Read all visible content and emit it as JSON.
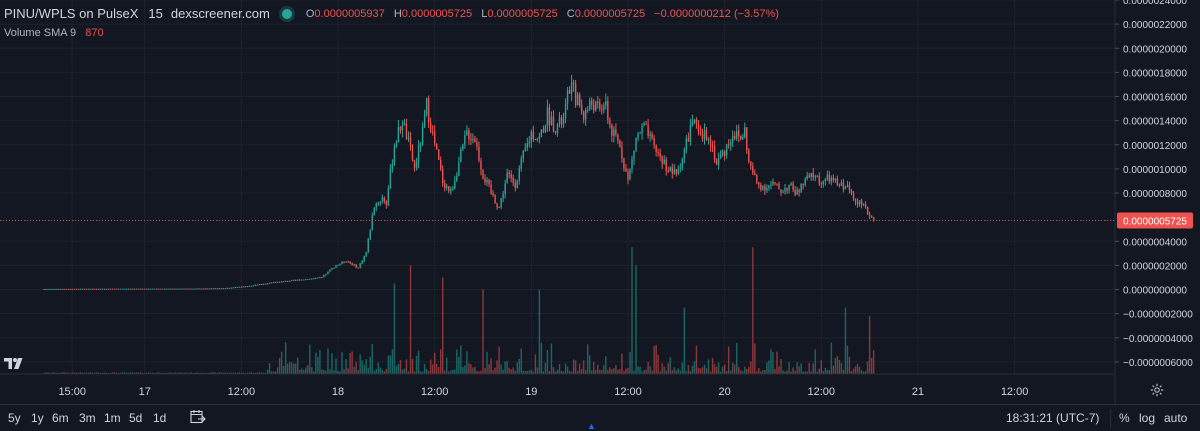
{
  "legend": {
    "pair": "PINU/WPLS on PulseX",
    "interval": "15",
    "source": "dexscreener.com",
    "ohlc": [
      {
        "key": "O",
        "value": "0.0000005937"
      },
      {
        "key": "H",
        "value": "0.0000005725"
      },
      {
        "key": "L",
        "value": "0.0000005725"
      },
      {
        "key": "C",
        "value": "0.0000005725"
      }
    ],
    "change": "−0.0000000212 (−3.57%)"
  },
  "volume_legend": {
    "label": "Volume SMA 9",
    "value": "870"
  },
  "bottom_bar": {
    "timeframes": [
      "5y",
      "1y",
      "6m",
      "3m",
      "1m",
      "5d",
      "1d"
    ],
    "clock": "18:31:21 (UTC-7)",
    "options": [
      "%",
      "log",
      "auto"
    ]
  },
  "icons": {
    "logo": "tradingview-logo-icon",
    "goto": "goto-date-icon",
    "settings": "gear-icon",
    "scroll": "chevron-up-icon"
  },
  "colors": {
    "up": "#26a69a",
    "down": "#ef5350",
    "background": "#131722",
    "grid": "#1e222d",
    "price_line": "#ef5350"
  },
  "chart_data": {
    "type": "candlestick",
    "ylim": [
      -7e-07,
      2.4e-06
    ],
    "y_ticks": [
      {
        "value": 2.4e-06,
        "label": "0.0000024000"
      },
      {
        "value": 2.2e-06,
        "label": "0.0000022000"
      },
      {
        "value": 2e-06,
        "label": "0.0000020000"
      },
      {
        "value": 1.8e-06,
        "label": "0.0000018000"
      },
      {
        "value": 1.6e-06,
        "label": "0.0000016000"
      },
      {
        "value": 1.4e-06,
        "label": "0.0000014000"
      },
      {
        "value": 1.2e-06,
        "label": "0.0000012000"
      },
      {
        "value": 1e-06,
        "label": "0.0000010000"
      },
      {
        "value": 8e-07,
        "label": "0.0000008000"
      },
      {
        "value": 4e-07,
        "label": "0.0000004000"
      },
      {
        "value": 2e-07,
        "label": "0.0000002000"
      },
      {
        "value": 0.0,
        "label": "0.0000000000"
      },
      {
        "value": -2e-07,
        "label": "−0.0000002000"
      },
      {
        "value": -4e-07,
        "label": "−0.0000004000"
      },
      {
        "value": -6e-07,
        "label": "−0.0000006000"
      }
    ],
    "last_price": {
      "value": 5.725e-07,
      "label": "0.0000005725"
    },
    "x_ticks": [
      {
        "t": 15.0,
        "label": "15:00"
      },
      {
        "t": 24.0,
        "label": "17"
      },
      {
        "t": 36.0,
        "label": "12:00"
      },
      {
        "t": 48.0,
        "label": "18"
      },
      {
        "t": 60.0,
        "label": "12:00"
      },
      {
        "t": 72.0,
        "label": "19"
      },
      {
        "t": 84.0,
        "label": "12:00"
      },
      {
        "t": 96.0,
        "label": "20"
      },
      {
        "t": 108.0,
        "label": "12:00"
      },
      {
        "t": 120.0,
        "label": "21"
      },
      {
        "t": 132.0,
        "label": "12:00"
      }
    ],
    "x_range": [
      11.0,
      139.5
    ],
    "x_unit": "hours since 16 00:00",
    "price_anchors": [
      [
        11.5,
        5e-09
      ],
      [
        20,
        7e-09
      ],
      [
        30,
        8e-09
      ],
      [
        34,
        1.2e-08
      ],
      [
        37,
        3e-08
      ],
      [
        40,
        6e-08
      ],
      [
        43,
        8e-08
      ],
      [
        46,
        1e-07
      ],
      [
        47.5,
        1.9e-07
      ],
      [
        49,
        2.4e-07
      ],
      [
        50.5,
        1.8e-07
      ],
      [
        51.5,
        3.1e-07
      ],
      [
        52.5,
        7e-07
      ],
      [
        53.5,
        7.6e-07
      ],
      [
        54,
        7.2e-07
      ],
      [
        55,
        1.2e-06
      ],
      [
        56,
        1.4e-06
      ],
      [
        57,
        1.15e-06
      ],
      [
        57.5,
        1e-06
      ],
      [
        58.5,
        1.3e-06
      ],
      [
        59,
        1.53e-06
      ],
      [
        60,
        1.2e-06
      ],
      [
        61,
        9e-07
      ],
      [
        62,
        8e-07
      ],
      [
        63,
        1.05e-06
      ],
      [
        64,
        1.3e-06
      ],
      [
        65,
        1.25e-06
      ],
      [
        66,
        9.5e-07
      ],
      [
        67,
        8e-07
      ],
      [
        68,
        6.8e-07
      ],
      [
        69,
        9.5e-07
      ],
      [
        70,
        8.8e-07
      ],
      [
        71,
        1.1e-06
      ],
      [
        72,
        1.3e-06
      ],
      [
        73,
        1.25e-06
      ],
      [
        74,
        1.45e-06
      ],
      [
        75,
        1.35e-06
      ],
      [
        76,
        1.4e-06
      ],
      [
        76.8,
        1.7e-06
      ],
      [
        77.5,
        1.6e-06
      ],
      [
        78.5,
        1.45e-06
      ],
      [
        79.5,
        1.55e-06
      ],
      [
        80.5,
        1.48e-06
      ],
      [
        81,
        1.56e-06
      ],
      [
        82,
        1.3e-06
      ],
      [
        83,
        1.2e-06
      ],
      [
        84,
        9e-07
      ],
      [
        85,
        1.25e-06
      ],
      [
        86,
        1.35e-06
      ],
      [
        87,
        1.2e-06
      ],
      [
        88,
        1.1e-06
      ],
      [
        89,
        1e-06
      ],
      [
        90,
        9.5e-07
      ],
      [
        91,
        1.15e-06
      ],
      [
        92,
        1.4e-06
      ],
      [
        93,
        1.25e-06
      ],
      [
        94,
        1.3e-06
      ],
      [
        95,
        1.05e-06
      ],
      [
        96,
        1.15e-06
      ],
      [
        97,
        1.3e-06
      ],
      [
        98,
        1.25e-06
      ],
      [
        98.5,
        1.32e-06
      ],
      [
        99,
        1.05e-06
      ],
      [
        100,
        8.8e-07
      ],
      [
        101,
        8.5e-07
      ],
      [
        102,
        8.7e-07
      ],
      [
        103,
        8.2e-07
      ],
      [
        104,
        8.6e-07
      ],
      [
        105,
        8e-07
      ],
      [
        106,
        9e-07
      ],
      [
        107,
        9.5e-07
      ],
      [
        108,
        8.9e-07
      ],
      [
        109,
        9.2e-07
      ],
      [
        110,
        8.7e-07
      ],
      [
        111,
        8.6e-07
      ],
      [
        112,
        7.8e-07
      ],
      [
        113,
        7e-07
      ],
      [
        114,
        6.2e-07
      ],
      [
        114.5,
        5.725e-07
      ]
    ],
    "volume_scale_max": 1.2e-06,
    "volume_spikes": [
      [
        55,
        7.5e-07
      ],
      [
        57,
        9e-07
      ],
      [
        61,
        8e-07
      ],
      [
        66,
        7e-07
      ],
      [
        73,
        7e-07
      ],
      [
        84.5,
        1.05e-06
      ],
      [
        85,
        9e-07
      ],
      [
        91,
        5.5e-07
      ],
      [
        99.5,
        1.05e-06
      ],
      [
        111,
        5.5e-07
      ],
      [
        114,
        4.8e-07
      ]
    ]
  }
}
